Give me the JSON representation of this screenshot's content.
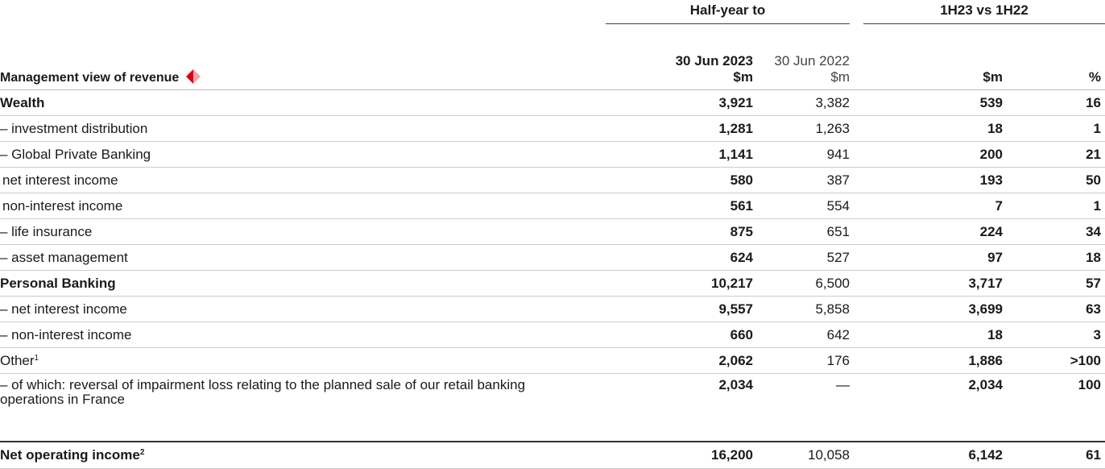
{
  "header": {
    "group_labels": [
      "Half-year to",
      "1H23 vs 1H22"
    ],
    "row_label": "Management view of revenue",
    "columns": [
      {
        "date": "30 Jun 2023",
        "unit": "$m"
      },
      {
        "date": "30 Jun 2022",
        "unit": "$m"
      },
      {
        "unit": "$m"
      },
      {
        "unit": "%"
      }
    ]
  },
  "rows": [
    {
      "label": "Wealth",
      "values": [
        "3,921",
        "3,382",
        "539",
        "16"
      ]
    },
    {
      "label": "– investment distribution",
      "values": [
        "1,281",
        "1,263",
        "18",
        "1"
      ]
    },
    {
      "label": "– Global Private Banking",
      "values": [
        "1,141",
        "941",
        "200",
        "21"
      ]
    },
    {
      "label": "net interest income",
      "values": [
        "580",
        "387",
        "193",
        "50"
      ]
    },
    {
      "label": "non-interest income",
      "values": [
        "561",
        "554",
        "7",
        "1"
      ]
    },
    {
      "label": "– life insurance",
      "values": [
        "875",
        "651",
        "224",
        "34"
      ]
    },
    {
      "label": "– asset management",
      "values": [
        "624",
        "527",
        "97",
        "18"
      ]
    },
    {
      "label": "Personal Banking",
      "values": [
        "10,217",
        "6,500",
        "3,717",
        "57"
      ]
    },
    {
      "label": "– net interest income",
      "values": [
        "9,557",
        "5,858",
        "3,699",
        "63"
      ]
    },
    {
      "label": "– non-interest income",
      "values": [
        "660",
        "642",
        "18",
        "3"
      ]
    },
    {
      "label": "Other",
      "footnote": "1",
      "values": [
        "2,062",
        "176",
        "1,886",
        ">100"
      ]
    },
    {
      "label": "– of which: reversal of impairment loss relating to the planned sale of our retail banking operations in France",
      "values": [
        "2,034",
        "—",
        "2,034",
        "100"
      ]
    },
    {
      "label": "Net operating income",
      "footnote": "2",
      "values": [
        "16,200",
        "10,058",
        "6,142",
        "61"
      ]
    }
  ]
}
